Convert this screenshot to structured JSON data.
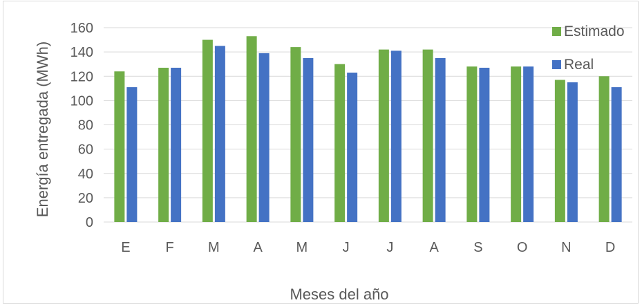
{
  "chart_data": {
    "type": "bar",
    "title": "",
    "xlabel": "Meses del año",
    "ylabel": "Energía entregada (MWh)",
    "ylim": [
      0,
      160
    ],
    "yticks": [
      0,
      20,
      40,
      60,
      80,
      100,
      120,
      140,
      160
    ],
    "grid": true,
    "legend_position": "right",
    "categories": [
      "E",
      "F",
      "M",
      "A",
      "M",
      "J",
      "J",
      "A",
      "S",
      "O",
      "N",
      "D"
    ],
    "series": [
      {
        "name": "Estimado",
        "color": "#70ad47",
        "values": [
          124,
          127,
          150,
          153,
          144,
          130,
          142,
          142,
          128,
          128,
          117,
          120
        ]
      },
      {
        "name": "Real",
        "color": "#4472c4",
        "values": [
          111,
          127,
          145,
          139,
          135,
          123,
          141,
          135,
          127,
          128,
          115,
          111
        ]
      }
    ]
  }
}
